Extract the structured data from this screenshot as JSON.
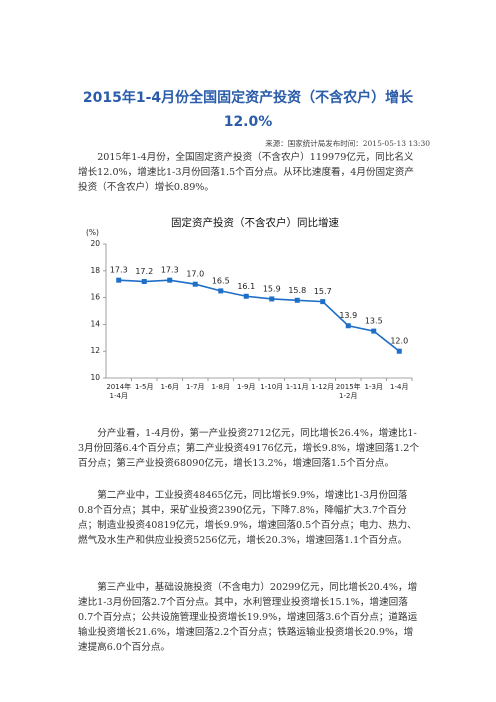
{
  "document": {
    "title": "2015年1-4月份全国固定资产投资（不含农户）增长12.0%",
    "source": "来源：国家统计局发布时间：2015-05-13  13:30",
    "paragraphs": [
      "2015年1-4月份，全国固定资产投资（不含农户）119979亿元，同比名义增长12.0%，增速比1-3月份回落1.5个百分点。从环比速度看，4月份固定资产投资（不含农户）增长0.89%。",
      "分产业看，1-4月份，第一产业投资2712亿元，同比增长26.4%，增速比1-3月份回落6.4个百分点；第二产业投资49176亿元，增长9.8%，增速回落1.2个百分点；第三产业投资68090亿元，增长13.2%，增速回落1.5个百分点。",
      "第二产业中，工业投资48465亿元，同比增长9.9%，增速比1-3月份回落0.8个百分点；其中，采矿业投资2390亿元，下降7.8%，降幅扩大3.7个百分点；制造业投资40819亿元，增长9.9%，增速回落0.5个百分点；电力、热力、燃气及水生产和供应业投资5256亿元，增长20.3%，增速回落1.1个百分点。",
      "第三产业中，基础设施投资（不含电力）20299亿元，同比增长20.4%，增速比1-3月份回落2.7个百分点。其中，水利管理业投资增长15.1%，增速回落0.7个百分点；公共设施管理业投资增长19.9%，增速回落3.6个百分点；道路运输业投资增长21.6%，增速回落2.2个百分点；铁路运输业投资增长20.9%，增速提高6.0个百分点。"
    ],
    "chart": {
      "type": "line",
      "title": "固定资产投资（不含农户）同比增速",
      "y_label": "(%)",
      "categories": [
        "2014年1-4月",
        "1-5月",
        "1-6月",
        "1-7月",
        "1-8月",
        "1-9月",
        "1-10月",
        "1-11月",
        "1-12月",
        "2015年1-2月",
        "1-3月",
        "1-4月"
      ],
      "values": [
        17.3,
        17.2,
        17.3,
        17,
        16.5,
        16.1,
        15.9,
        15.8,
        15.7,
        13.9,
        13.5,
        12
      ],
      "value_labels": [
        "17.3",
        "17.2",
        "17.3",
        "17.0",
        "16.5",
        "16.1",
        "15.9",
        "15.8",
        "15.7",
        "13.9",
        "13.5",
        "12.0"
      ],
      "color": "#1e6fc8",
      "ylim": [
        10,
        20
      ],
      "yticks": [
        10,
        12,
        14,
        16,
        18,
        20
      ],
      "grid": false
    }
  }
}
